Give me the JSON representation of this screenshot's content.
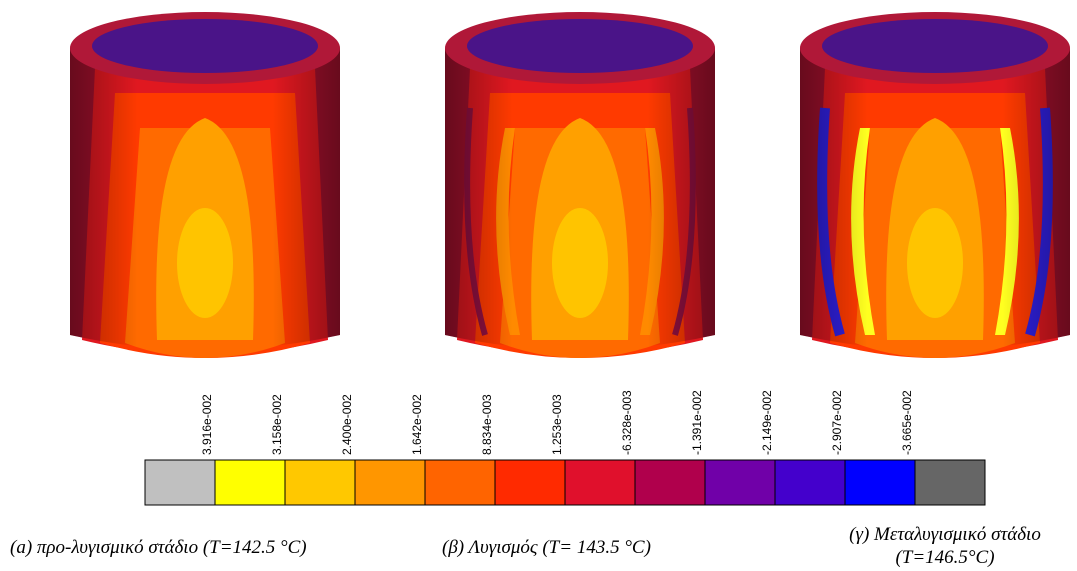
{
  "figure": {
    "legend": {
      "labels": [
        "3.916e-002",
        "3.158e-002",
        "2.400e-002",
        "1.642e-002",
        "8.834e-003",
        "1.253e-003",
        "-6.328e-003",
        "-1.391e-002",
        "-2.149e-002",
        "-2.907e-002",
        "-3.665e-002"
      ],
      "colors": [
        "#c0c0c0",
        "#ffff00",
        "#ffc800",
        "#ff9600",
        "#ff6400",
        "#ff2a00",
        "#e0102c",
        "#b0004c",
        "#7000a8",
        "#4400cc",
        "#0000ff",
        "#666666"
      ]
    },
    "captions": [
      {
        "lines": [
          "(a) προ-λυγισμικό στάδιο (T=142.5 °C)"
        ]
      },
      {
        "lines": [
          "(β) Λυγισμός (T= 143.5 °C)"
        ]
      },
      {
        "lines": [
          "(γ) Μεταλυγισμικό στάδιο",
          "(T=146.5°C)"
        ]
      }
    ]
  }
}
